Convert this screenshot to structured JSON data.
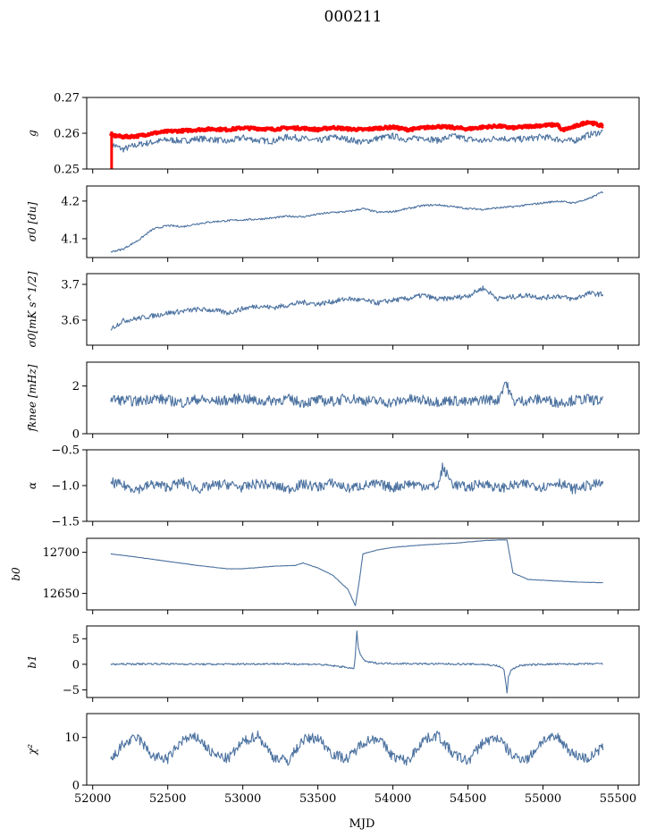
{
  "title": "000211",
  "xlabel": "MJD",
  "colors": {
    "series": "#4c72a0",
    "highlight": "#ff0000",
    "axis": "#000000"
  },
  "chart_data": [
    {
      "type": "line",
      "ylabel": "g",
      "ylim": [
        0.25,
        0.27
      ],
      "yticks": [
        "0.25",
        "0.26",
        "0.27"
      ],
      "series": [
        {
          "color": "#4c72a0",
          "x": [
            52120,
            52200,
            52300,
            52400,
            52500,
            52600,
            52700,
            52800,
            52900,
            53000,
            53100,
            53200,
            53300,
            53400,
            53500,
            53600,
            53700,
            53800,
            53900,
            54000,
            54100,
            54200,
            54300,
            54400,
            54500,
            54600,
            54700,
            54800,
            54900,
            55000,
            55100,
            55200,
            55300,
            55400
          ],
          "y": [
            0.257,
            0.2555,
            0.2568,
            0.2575,
            0.2582,
            0.2578,
            0.2585,
            0.2583,
            0.2576,
            0.2588,
            0.258,
            0.2578,
            0.259,
            0.2585,
            0.2578,
            0.259,
            0.2583,
            0.2575,
            0.2586,
            0.2592,
            0.2582,
            0.2588,
            0.258,
            0.2592,
            0.2584,
            0.2578,
            0.2588,
            0.2582,
            0.2585,
            0.259,
            0.2583,
            0.2578,
            0.2595,
            0.2605
          ]
        },
        {
          "color": "#ff0000",
          "x": [
            52120,
            52200,
            52300,
            52400,
            52500,
            52600,
            52700,
            52800,
            52900,
            53000,
            53100,
            53200,
            53300,
            53400,
            53500,
            53600,
            53700,
            53800,
            53900,
            54000,
            54100,
            54200,
            54300,
            54400,
            54500,
            54600,
            54700,
            54800,
            54900,
            55000,
            55100,
            55120,
            55200,
            55300,
            55400
          ],
          "y": [
            0.2595,
            0.259,
            0.2592,
            0.26,
            0.2605,
            0.2607,
            0.261,
            0.2612,
            0.261,
            0.2615,
            0.2613,
            0.2611,
            0.2615,
            0.2614,
            0.261,
            0.2616,
            0.2612,
            0.261,
            0.2614,
            0.2617,
            0.261,
            0.2615,
            0.2619,
            0.2616,
            0.2612,
            0.2617,
            0.262,
            0.2615,
            0.2619,
            0.2622,
            0.2624,
            0.2608,
            0.2617,
            0.2632,
            0.262
          ]
        }
      ]
    },
    {
      "type": "line",
      "ylabel": "σ0 [du]",
      "ylim": [
        4.05,
        4.24
      ],
      "yticks": [
        "4.1",
        "4.2"
      ],
      "series": [
        {
          "color": "#4c72a0",
          "x": [
            52120,
            52200,
            52300,
            52400,
            52500,
            52600,
            52700,
            52800,
            52900,
            53000,
            53100,
            53200,
            53300,
            53400,
            53500,
            53600,
            53700,
            53800,
            53900,
            54000,
            54100,
            54200,
            54300,
            54400,
            54500,
            54600,
            54700,
            54800,
            54900,
            55000,
            55100,
            55200,
            55300,
            55400
          ],
          "y": [
            4.065,
            4.072,
            4.095,
            4.125,
            4.135,
            4.132,
            4.14,
            4.145,
            4.148,
            4.15,
            4.152,
            4.155,
            4.16,
            4.158,
            4.165,
            4.17,
            4.172,
            4.18,
            4.17,
            4.172,
            4.18,
            4.188,
            4.19,
            4.185,
            4.18,
            4.178,
            4.182,
            4.185,
            4.19,
            4.195,
            4.2,
            4.195,
            4.205,
            4.225
          ]
        }
      ]
    },
    {
      "type": "line",
      "ylabel": "σ0[mK s^1/2]",
      "ylim": [
        3.53,
        3.73
      ],
      "yticks": [
        "3.6",
        "3.7"
      ],
      "series": [
        {
          "color": "#4c72a0",
          "x": [
            52120,
            52200,
            52300,
            52400,
            52500,
            52600,
            52700,
            52800,
            52900,
            53000,
            53100,
            53200,
            53300,
            53400,
            53500,
            53600,
            53700,
            53800,
            53900,
            54000,
            54100,
            54200,
            54300,
            54400,
            54500,
            54600,
            54700,
            54800,
            54900,
            55000,
            55100,
            55200,
            55300,
            55400
          ],
          "y": [
            3.575,
            3.598,
            3.605,
            3.612,
            3.62,
            3.625,
            3.63,
            3.628,
            3.62,
            3.632,
            3.64,
            3.635,
            3.642,
            3.65,
            3.645,
            3.652,
            3.66,
            3.655,
            3.648,
            3.656,
            3.66,
            3.67,
            3.658,
            3.662,
            3.668,
            3.69,
            3.66,
            3.665,
            3.67,
            3.662,
            3.668,
            3.658,
            3.675,
            3.672
          ]
        }
      ]
    },
    {
      "type": "line",
      "ylabel": "fknee [mHz]",
      "ylim": [
        0,
        3
      ],
      "yticks": [
        "0",
        "2"
      ],
      "series": [
        {
          "color": "#4c72a0",
          "x": [
            52120,
            52200,
            52300,
            52400,
            52500,
            52600,
            52700,
            52800,
            52900,
            53000,
            53100,
            53200,
            53300,
            53400,
            53500,
            53600,
            53700,
            53800,
            53900,
            54000,
            54100,
            54200,
            54300,
            54400,
            54500,
            54600,
            54700,
            54750,
            54800,
            54900,
            55000,
            55100,
            55200,
            55300,
            55400
          ],
          "y": [
            1.45,
            1.4,
            1.35,
            1.5,
            1.4,
            1.3,
            1.45,
            1.35,
            1.4,
            1.5,
            1.35,
            1.4,
            1.45,
            1.3,
            1.4,
            1.35,
            1.5,
            1.4,
            1.35,
            1.3,
            1.45,
            1.4,
            1.35,
            1.4,
            1.3,
            1.45,
            1.4,
            2.2,
            1.35,
            1.4,
            1.45,
            1.3,
            1.4,
            1.45,
            1.35
          ]
        }
      ]
    },
    {
      "type": "line",
      "ylabel": "α",
      "ylim": [
        -1.5,
        -0.5
      ],
      "yticks": [
        "−1.5",
        "−1.0",
        "−0.5"
      ],
      "series": [
        {
          "color": "#4c72a0",
          "x": [
            52120,
            52200,
            52300,
            52400,
            52500,
            52600,
            52700,
            52800,
            52900,
            53000,
            53100,
            53200,
            53300,
            53400,
            53500,
            53600,
            53700,
            53800,
            53900,
            54000,
            54100,
            54200,
            54300,
            54330,
            54400,
            54500,
            54600,
            54700,
            54800,
            54900,
            55000,
            55100,
            55200,
            55300,
            55400
          ],
          "y": [
            -0.95,
            -1.0,
            -1.05,
            -0.98,
            -1.02,
            -0.95,
            -1.05,
            -1.0,
            -0.98,
            -1.03,
            -0.97,
            -1.0,
            -1.05,
            -0.98,
            -1.02,
            -0.96,
            -1.04,
            -1.0,
            -0.98,
            -1.03,
            -0.97,
            -1.0,
            -1.02,
            -0.75,
            -0.98,
            -1.03,
            -0.96,
            -1.04,
            -1.0,
            -0.98,
            -1.02,
            -0.95,
            -1.05,
            -1.0,
            -0.97
          ]
        }
      ]
    },
    {
      "type": "line",
      "ylabel": "b0",
      "ylim": [
        12630,
        12717
      ],
      "yticks": [
        "12650",
        "12700"
      ],
      "series": [
        {
          "color": "#4c72a0",
          "x": [
            52120,
            52300,
            52500,
            52700,
            52900,
            53000,
            53200,
            53350,
            53400,
            53500,
            53600,
            53700,
            53750,
            53780,
            53800,
            53900,
            54000,
            54200,
            54400,
            54600,
            54700,
            54750,
            54760,
            54800,
            54900,
            55000,
            55200,
            55400
          ],
          "y": [
            12698,
            12694,
            12689,
            12684,
            12680,
            12680,
            12683,
            12684,
            12687,
            12681,
            12672,
            12655,
            12635,
            12670,
            12698,
            12703,
            12706,
            12709,
            12711,
            12714,
            12715,
            12715,
            12715,
            12675,
            12667,
            12666,
            12664,
            12663
          ]
        }
      ]
    },
    {
      "type": "line",
      "ylabel": "b1",
      "ylim": [
        -6.5,
        7.5
      ],
      "yticks": [
        "−5",
        "0",
        "5"
      ],
      "series": [
        {
          "color": "#4c72a0",
          "x": [
            52120,
            52400,
            52800,
            53200,
            53500,
            53600,
            53700,
            53740,
            53750,
            53760,
            53770,
            53790,
            53820,
            53900,
            54200,
            54600,
            54700,
            54740,
            54760,
            54770,
            54790,
            54850,
            55000,
            55400
          ],
          "y": [
            0.0,
            0.1,
            0.0,
            0.1,
            0.0,
            -0.3,
            -0.6,
            -1.0,
            2.0,
            6.5,
            3.0,
            1.5,
            0.5,
            0.2,
            0.1,
            0.0,
            -0.3,
            -1.0,
            -5.5,
            -2.5,
            -1.0,
            -0.2,
            0.0,
            0.1
          ]
        }
      ]
    },
    {
      "type": "line",
      "ylabel": "χ²",
      "ylim": [
        0,
        15
      ],
      "yticks": [
        "0",
        "10"
      ],
      "series": [
        {
          "color": "#4c72a0",
          "x": [
            52120,
            52200,
            52300,
            52400,
            52500,
            52600,
            52700,
            52800,
            52900,
            53000,
            53100,
            53200,
            53300,
            53400,
            53500,
            53600,
            53700,
            53800,
            53900,
            54000,
            54100,
            54200,
            54300,
            54400,
            54500,
            54600,
            54700,
            54800,
            54900,
            55000,
            55100,
            55200,
            55300,
            55400
          ],
          "y": [
            5.0,
            8.5,
            10.0,
            6.0,
            5.5,
            9.5,
            10.0,
            6.5,
            5.5,
            9.0,
            10.5,
            6.0,
            5.0,
            9.5,
            10.0,
            6.5,
            5.5,
            9.0,
            10.0,
            6.0,
            5.0,
            9.5,
            10.5,
            6.5,
            5.0,
            9.0,
            10.0,
            6.0,
            5.5,
            9.5,
            10.0,
            6.5,
            5.5,
            8.0
          ]
        }
      ]
    }
  ],
  "xaxis": {
    "xlim": [
      51960,
      55640
    ],
    "ticks": [
      52000,
      52500,
      53000,
      53500,
      54000,
      54500,
      55000,
      55500
    ]
  }
}
